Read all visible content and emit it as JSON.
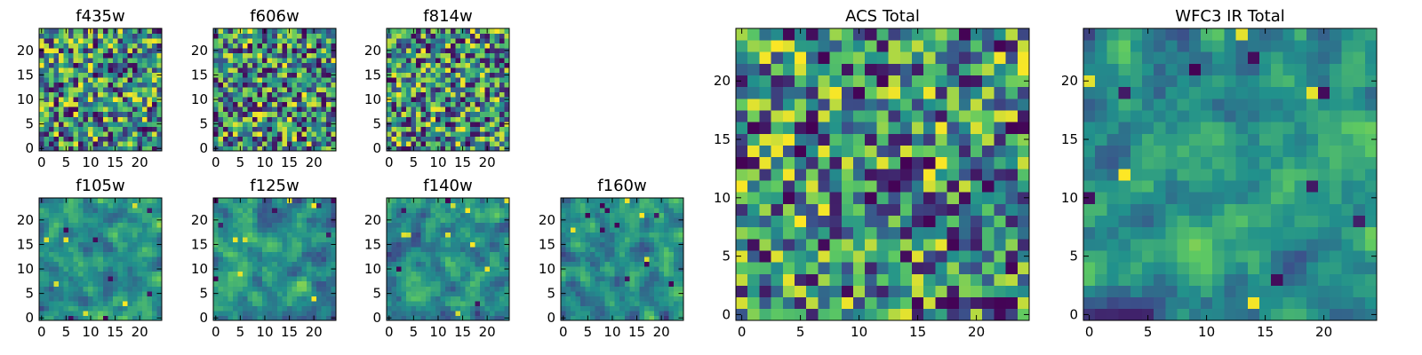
{
  "chart_data": [
    {
      "type": "heatmap",
      "title": "f435w",
      "grid": [
        25,
        25
      ],
      "xticks": [
        "0",
        "5",
        "10",
        "15",
        "20"
      ],
      "yticks": [
        "0",
        "5",
        "10",
        "15",
        "20"
      ],
      "xlim": [
        -0.5,
        24.5
      ],
      "ylim": [
        -0.5,
        24.5
      ],
      "colormap": "viridis",
      "seed": 11,
      "smooth": 0
    },
    {
      "type": "heatmap",
      "title": "f606w",
      "grid": [
        25,
        25
      ],
      "xticks": [
        "0",
        "5",
        "10",
        "15",
        "20"
      ],
      "yticks": [
        "0",
        "5",
        "10",
        "15",
        "20"
      ],
      "xlim": [
        -0.5,
        24.5
      ],
      "ylim": [
        -0.5,
        24.5
      ],
      "colormap": "viridis",
      "seed": 23,
      "smooth": 0
    },
    {
      "type": "heatmap",
      "title": "f814w",
      "grid": [
        25,
        25
      ],
      "xticks": [
        "0",
        "5",
        "10",
        "15",
        "20"
      ],
      "yticks": [
        "0",
        "5",
        "10",
        "15",
        "20"
      ],
      "xlim": [
        -0.5,
        24.5
      ],
      "ylim": [
        -0.5,
        24.5
      ],
      "colormap": "viridis",
      "seed": 37,
      "smooth": 0
    },
    {
      "type": "heatmap",
      "title": "f105w",
      "grid": [
        25,
        25
      ],
      "xticks": [
        "0",
        "5",
        "10",
        "15",
        "20"
      ],
      "yticks": [
        "0",
        "5",
        "10",
        "15",
        "20"
      ],
      "xlim": [
        -0.5,
        24.5
      ],
      "ylim": [
        -0.5,
        24.5
      ],
      "colormap": "viridis",
      "seed": 41,
      "smooth": 1
    },
    {
      "type": "heatmap",
      "title": "f125w",
      "grid": [
        25,
        25
      ],
      "xticks": [
        "0",
        "5",
        "10",
        "15",
        "20"
      ],
      "yticks": [
        "0",
        "5",
        "10",
        "15",
        "20"
      ],
      "xlim": [
        -0.5,
        24.5
      ],
      "ylim": [
        -0.5,
        24.5
      ],
      "colormap": "viridis",
      "seed": 53,
      "smooth": 1
    },
    {
      "type": "heatmap",
      "title": "f140w",
      "grid": [
        25,
        25
      ],
      "xticks": [
        "0",
        "5",
        "10",
        "15",
        "20"
      ],
      "yticks": [
        "0",
        "5",
        "10",
        "15",
        "20"
      ],
      "xlim": [
        -0.5,
        24.5
      ],
      "ylim": [
        -0.5,
        24.5
      ],
      "colormap": "viridis",
      "seed": 67,
      "smooth": 1
    },
    {
      "type": "heatmap",
      "title": "f160w",
      "grid": [
        25,
        25
      ],
      "xticks": [
        "0",
        "5",
        "10",
        "15",
        "20"
      ],
      "yticks": [
        "0",
        "5",
        "10",
        "15",
        "20"
      ],
      "xlim": [
        -0.5,
        24.5
      ],
      "ylim": [
        -0.5,
        24.5
      ],
      "colormap": "viridis",
      "seed": 79,
      "smooth": 1
    },
    {
      "type": "heatmap",
      "title": "ACS Total",
      "grid": [
        25,
        25
      ],
      "xticks": [
        "0",
        "5",
        "10",
        "15",
        "20"
      ],
      "yticks": [
        "0",
        "5",
        "10",
        "15",
        "20"
      ],
      "xlim": [
        -0.5,
        24.5
      ],
      "ylim": [
        -0.5,
        24.5
      ],
      "colormap": "viridis",
      "seed": 83,
      "smooth": 0
    },
    {
      "type": "heatmap",
      "title": "WFC3 IR Total",
      "grid": [
        25,
        25
      ],
      "xticks": [
        "0",
        "5",
        "10",
        "15",
        "20"
      ],
      "yticks": [
        "0",
        "5",
        "10",
        "15",
        "20"
      ],
      "xlim": [
        -0.5,
        24.5
      ],
      "ylim": [
        -0.5,
        24.5
      ],
      "colormap": "viridis",
      "seed": 97,
      "smooth": 1
    }
  ],
  "colors": {
    "viridis_stops": [
      "#440154",
      "#3b528b",
      "#21918c",
      "#5ec962",
      "#fde725"
    ]
  }
}
